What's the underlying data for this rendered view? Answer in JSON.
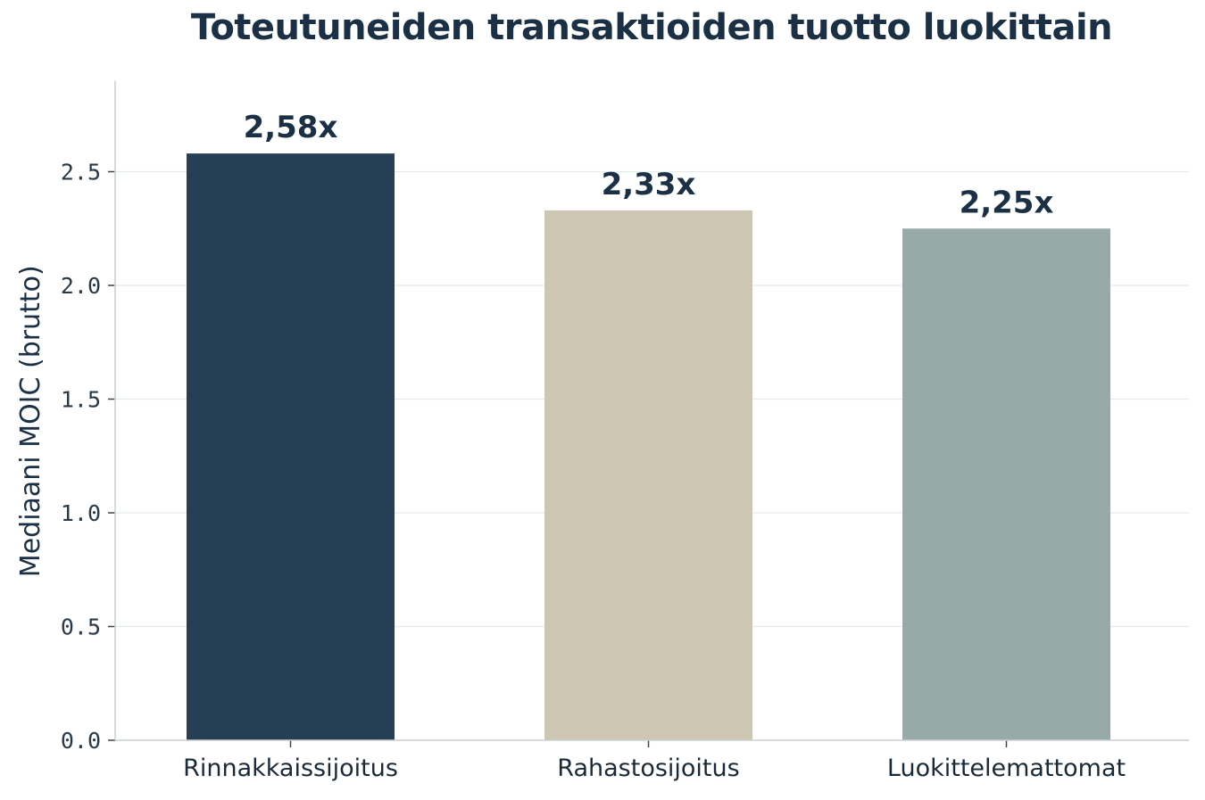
{
  "chart_data": {
    "type": "bar",
    "title": "Toteutuneiden transaktioiden tuotto luokittain",
    "xlabel": "",
    "ylabel": "Mediaani MOIC (brutto)",
    "categories": [
      "Rinnakkaissijoitus",
      "Rahastosijoitus",
      "Luokittelemattomat"
    ],
    "values": [
      2.58,
      2.33,
      2.25
    ],
    "data_labels": [
      "2,58x",
      "2,33x",
      "2,25x"
    ],
    "bar_colors": [
      "#263f55",
      "#ccc6b3",
      "#97aaa7"
    ],
    "ylim": [
      0,
      2.9
    ],
    "yticks": [
      0.0,
      0.5,
      1.0,
      1.5,
      2.0,
      2.5
    ],
    "ytick_labels": [
      "0.0",
      "0.5",
      "1.0",
      "1.5",
      "2.0",
      "2.5"
    ],
    "grid": true,
    "legend": "none"
  }
}
